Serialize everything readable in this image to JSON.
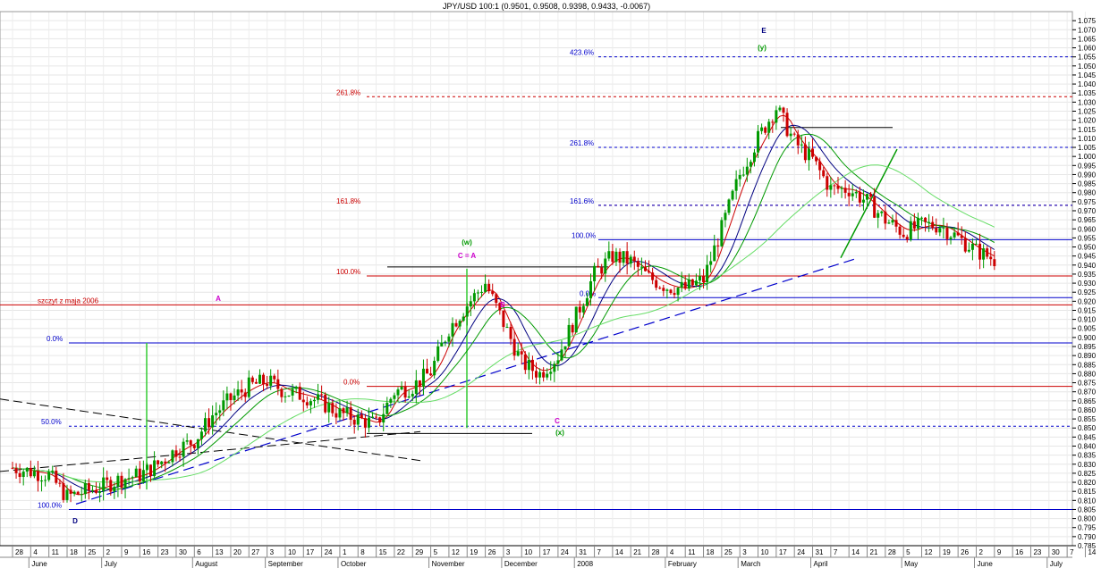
{
  "chart_data": {
    "type": "candlestick",
    "title": "JPY/USD 100:1 (0.9501, 0.9508, 0.9398, 0.9433, -0.0067)",
    "ylim": [
      0.785,
      1.08
    ],
    "y_ticks": [
      0.785,
      0.79,
      0.795,
      0.8,
      0.805,
      0.81,
      0.815,
      0.82,
      0.825,
      0.83,
      0.835,
      0.84,
      0.845,
      0.85,
      0.855,
      0.86,
      0.865,
      0.87,
      0.875,
      0.88,
      0.885,
      0.89,
      0.895,
      0.9,
      0.905,
      0.91,
      0.915,
      0.92,
      0.925,
      0.93,
      0.935,
      0.94,
      0.945,
      0.95,
      0.955,
      0.96,
      0.965,
      0.97,
      0.975,
      0.98,
      0.985,
      0.99,
      0.995,
      1.0,
      1.005,
      1.01,
      1.015,
      1.02,
      1.025,
      1.03,
      1.035,
      1.04,
      1.045,
      1.05,
      1.055,
      1.06,
      1.065,
      1.07,
      1.075
    ],
    "x_day_labels": [
      "28",
      "4",
      "11",
      "18",
      "25",
      "2",
      "9",
      "16",
      "23",
      "30",
      "6",
      "13",
      "20",
      "27",
      "3",
      "10",
      "17",
      "24",
      "1",
      "8",
      "15",
      "22",
      "29",
      "5",
      "12",
      "19",
      "26",
      "3",
      "10",
      "17",
      "24",
      "31",
      "7",
      "14",
      "21",
      "28",
      "4",
      "11",
      "18",
      "25",
      "3",
      "10",
      "17",
      "24",
      "31",
      "7",
      "14",
      "21",
      "28",
      "5",
      "12",
      "19",
      "26",
      "2",
      "9",
      "16",
      "23",
      "30",
      "7",
      "14"
    ],
    "x_month_labels": [
      {
        "label": "June",
        "week": 1
      },
      {
        "label": "July",
        "week": 5
      },
      {
        "label": "August",
        "week": 10
      },
      {
        "label": "September",
        "week": 14
      },
      {
        "label": "October",
        "week": 18
      },
      {
        "label": "November",
        "week": 23
      },
      {
        "label": "December",
        "week": 27
      },
      {
        "label": "2008",
        "week": 31
      },
      {
        "label": "February",
        "week": 36
      },
      {
        "label": "March",
        "week": 40
      },
      {
        "label": "April",
        "week": 44
      },
      {
        "label": "May",
        "week": 49
      },
      {
        "label": "June",
        "week": 53
      },
      {
        "label": "July",
        "week": 57
      }
    ],
    "price_path": [
      [
        0,
        0.828
      ],
      [
        1,
        0.826
      ],
      [
        2,
        0.824
      ],
      [
        3,
        0.812
      ],
      [
        4,
        0.815
      ],
      [
        5,
        0.818
      ],
      [
        6,
        0.822
      ],
      [
        7,
        0.824
      ],
      [
        8,
        0.83
      ],
      [
        9,
        0.838
      ],
      [
        10,
        0.843
      ],
      [
        11,
        0.857
      ],
      [
        12,
        0.866
      ],
      [
        13,
        0.873
      ],
      [
        14,
        0.876
      ],
      [
        15,
        0.87
      ],
      [
        16,
        0.868
      ],
      [
        17,
        0.864
      ],
      [
        18,
        0.858
      ],
      [
        19,
        0.855
      ],
      [
        20,
        0.852
      ],
      [
        21,
        0.87
      ],
      [
        22,
        0.873
      ],
      [
        23,
        0.881
      ],
      [
        24,
        0.905
      ],
      [
        25,
        0.918
      ],
      [
        26,
        0.93
      ],
      [
        27,
        0.908
      ],
      [
        28,
        0.886
      ],
      [
        29,
        0.88
      ],
      [
        30,
        0.89
      ],
      [
        31,
        0.912
      ],
      [
        32,
        0.935
      ],
      [
        33,
        0.945
      ],
      [
        34,
        0.942
      ],
      [
        35,
        0.933
      ],
      [
        36,
        0.928
      ],
      [
        37,
        0.927
      ],
      [
        38,
        0.932
      ],
      [
        39,
        0.96
      ],
      [
        40,
        0.99
      ],
      [
        41,
        1.01
      ],
      [
        42,
        1.027
      ],
      [
        43,
        1.008
      ],
      [
        44,
        0.998
      ],
      [
        45,
        0.982
      ],
      [
        46,
        0.982
      ],
      [
        47,
        0.975
      ],
      [
        48,
        0.965
      ],
      [
        49,
        0.958
      ],
      [
        50,
        0.962
      ],
      [
        51,
        0.962
      ],
      [
        52,
        0.955
      ],
      [
        53,
        0.948
      ],
      [
        54,
        0.943
      ]
    ],
    "trendlines": [
      {
        "label": "szczyt z maja 2006",
        "value": 0.918,
        "color": "#cc0000"
      },
      {
        "label": "0.0%",
        "value": 0.897,
        "color": "#0000cc"
      },
      {
        "label": "50.0%",
        "value": 0.851,
        "color": "#0000cc"
      },
      {
        "label": "100.0%",
        "value": 0.805,
        "color": "#0000cc"
      },
      {
        "label": "100.0%",
        "value": 0.934,
        "color": "#cc0000"
      },
      {
        "label": "0.0%",
        "value": 0.873,
        "color": "#cc0000"
      },
      {
        "label": "261.8%",
        "value": 1.033,
        "color": "#cc0000"
      },
      {
        "label": "161.8%",
        "value": 0.973,
        "color": "#cc0000"
      },
      {
        "label": "423.6%",
        "value": 1.055,
        "color": "#0000cc"
      },
      {
        "label": "261.8%",
        "value": 1.005,
        "color": "#0000cc"
      },
      {
        "label": "161.6%",
        "value": 0.973,
        "color": "#0000cc"
      },
      {
        "label": "100.0%",
        "value": 0.954,
        "color": "#0000cc"
      },
      {
        "label": "0.0%",
        "value": 0.922,
        "color": "#0000cc"
      }
    ],
    "wave_labels": [
      {
        "text": "E",
        "color": "#000080"
      },
      {
        "text": "(y)",
        "color": "#009900"
      },
      {
        "text": "(w)",
        "color": "#009900"
      },
      {
        "text": "(x)",
        "color": "#009900"
      },
      {
        "text": "C = A",
        "color": "#cc00cc"
      },
      {
        "text": "A",
        "color": "#cc00cc"
      },
      {
        "text": "B",
        "color": "#cc00cc"
      },
      {
        "text": "C",
        "color": "#cc00cc"
      },
      {
        "text": "D",
        "color": "#000080"
      }
    ],
    "grid": true,
    "legend": "none"
  }
}
